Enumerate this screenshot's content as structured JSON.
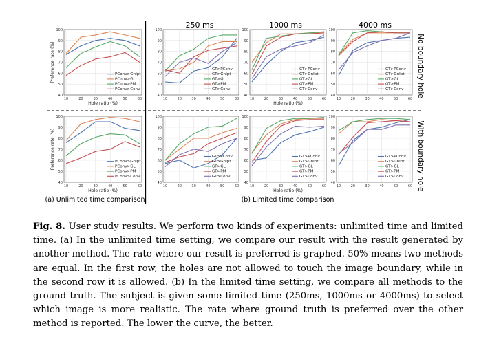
{
  "figure": {
    "column_titles": [
      "250 ms",
      "1000 ms",
      "4000 ms"
    ],
    "row_titles": [
      "No boundary hole",
      "With boundary hole"
    ],
    "subcaption_a": "(a) Unlimited time comparison",
    "subcaption_b": "(b) Limited time comparison",
    "colors": [
      "#4c72b0",
      "#dd8452",
      "#55a868",
      "#c44e52",
      "#8172b2"
    ]
  },
  "caption": {
    "label": "Fig. 8.",
    "text": "User study results. We perform two kinds of experiments: unlimited time and limited time. (a) In the unlimited time setting, we compare our result with the result generated by another method. The rate where our result is preferred is graphed. 50% means two methods are equal. In the first row, the holes are not allowed to touch the image boundary, while in the second row it is allowed. (b) In the limited time setting, we compare all methods to the ground truth. The subject is given some limited time (250ms, 1000ms or 4000ms) to select which image is more realistic. The rate where ground truth is preferred over the other method is reported. The lower the curve, the better."
  },
  "chart_data": [
    {
      "panel": "unlimited-no-boundary",
      "type": "line",
      "xlabel": "Hole ratio (%)",
      "ylabel": "Preference rate (%)",
      "x": [
        10,
        20,
        30,
        40,
        50,
        60
      ],
      "ylim": [
        40,
        100
      ],
      "xticks": [
        10,
        20,
        30,
        40,
        50,
        60
      ],
      "yticks": [
        40,
        50,
        60,
        70,
        80,
        90,
        100
      ],
      "grid": true,
      "legend_position": "lower-right",
      "series": [
        {
          "name": "PConv>GnIpt",
          "values": [
            77,
            85,
            90,
            92,
            90,
            85
          ]
        },
        {
          "name": "PConv>GL",
          "values": [
            78,
            93,
            95,
            98,
            95,
            92
          ]
        },
        {
          "name": "PConv>PM",
          "values": [
            65,
            78,
            84,
            89,
            85,
            75
          ]
        },
        {
          "name": "PConv>Conv",
          "values": [
            58,
            67,
            73,
            75,
            79,
            70
          ]
        }
      ]
    },
    {
      "panel": "250ms-no-boundary",
      "type": "line",
      "xlabel": "",
      "ylabel": "",
      "x": [
        10,
        20,
        30,
        40,
        50,
        60
      ],
      "ylim": [
        40,
        100
      ],
      "xticks": [
        10,
        20,
        30,
        40,
        50,
        60
      ],
      "yticks": [
        40,
        50,
        60,
        70,
        80,
        90,
        100
      ],
      "grid": true,
      "legend_position": "lower-right",
      "series": [
        {
          "name": "GT>PConv",
          "values": [
            52,
            51,
            62,
            65,
            75,
            92
          ]
        },
        {
          "name": "GT>GnIpt",
          "values": [
            62,
            64,
            70,
            85,
            89,
            89
          ]
        },
        {
          "name": "GT>GL",
          "values": [
            62,
            76,
            82,
            92,
            95,
            95
          ]
        },
        {
          "name": "GT>PM",
          "values": [
            63,
            60,
            75,
            81,
            83,
            85
          ]
        },
        {
          "name": "GT>Conv",
          "values": [
            57,
            70,
            74,
            69,
            80,
            88
          ]
        }
      ]
    },
    {
      "panel": "1000ms-no-boundary",
      "type": "line",
      "xlabel": "Hole ratio (%)",
      "ylabel": "",
      "x": [
        10,
        20,
        30,
        40,
        50,
        60
      ],
      "ylim": [
        40,
        100
      ],
      "xticks": [
        10,
        20,
        30,
        40,
        50,
        60
      ],
      "yticks": [
        40,
        50,
        60,
        70,
        80,
        90,
        100
      ],
      "grid": true,
      "legend_position": "lower-right",
      "series": [
        {
          "name": "GT>PConv",
          "values": [
            52,
            68,
            80,
            88,
            90,
            93
          ]
        },
        {
          "name": "GT>GnIpt",
          "values": [
            70,
            88,
            96,
            96,
            97,
            97
          ]
        },
        {
          "name": "GT>GL",
          "values": [
            63,
            92,
            94,
            96,
            97,
            98
          ]
        },
        {
          "name": "GT>PM",
          "values": [
            59,
            85,
            93,
            96,
            96,
            97
          ]
        },
        {
          "name": "GT>Conv",
          "values": [
            55,
            75,
            82,
            85,
            88,
            95
          ]
        }
      ]
    },
    {
      "panel": "4000ms-no-boundary",
      "type": "line",
      "xlabel": "",
      "ylabel": "",
      "x": [
        10,
        20,
        30,
        40,
        50,
        60
      ],
      "ylim": [
        40,
        100
      ],
      "xticks": [
        10,
        20,
        30,
        40,
        50,
        60
      ],
      "yticks": [
        40,
        50,
        60,
        70,
        80,
        90,
        100
      ],
      "grid": true,
      "legend_position": "lower-right",
      "series": [
        {
          "name": "GT>PConv",
          "values": [
            58,
            81,
            88,
            90,
            92,
            93
          ]
        },
        {
          "name": "GT>GnIpt",
          "values": [
            77,
            91,
            97,
            97,
            97,
            97
          ]
        },
        {
          "name": "GT>GL",
          "values": [
            77,
            97,
            99,
            98,
            97,
            97
          ]
        },
        {
          "name": "GT>PM",
          "values": [
            76,
            89,
            97,
            98,
            97,
            97
          ]
        },
        {
          "name": "GT>Conv",
          "values": [
            63,
            79,
            85,
            90,
            92,
            97
          ]
        }
      ]
    },
    {
      "panel": "unlimited-with-boundary",
      "type": "line",
      "xlabel": "Hole ratio (%)",
      "ylabel": "Preference rate (%)",
      "x": [
        10,
        20,
        30,
        40,
        50,
        60
      ],
      "ylim": [
        40,
        100
      ],
      "xticks": [
        10,
        20,
        30,
        40,
        50,
        60
      ],
      "yticks": [
        40,
        50,
        60,
        70,
        80,
        90,
        100
      ],
      "grid": true,
      "legend_position": "lower-right",
      "series": [
        {
          "name": "PConv>GnIpt",
          "values": [
            76,
            85,
            95,
            95,
            89,
            87
          ]
        },
        {
          "name": "PConv>GL",
          "values": [
            78,
            93,
            97,
            99,
            98,
            95
          ]
        },
        {
          "name": "PConv>PM",
          "values": [
            64,
            75,
            81,
            84,
            83,
            75
          ]
        },
        {
          "name": "PConv>Conv",
          "values": [
            57,
            62,
            68,
            70,
            77,
            72
          ]
        }
      ]
    },
    {
      "panel": "250ms-with-boundary",
      "type": "line",
      "xlabel": "",
      "ylabel": "",
      "x": [
        10,
        20,
        30,
        40,
        50,
        60
      ],
      "ylim": [
        40,
        100
      ],
      "xticks": [
        10,
        20,
        30,
        40,
        50,
        60
      ],
      "yticks": [
        40,
        50,
        60,
        70,
        80,
        90,
        100
      ],
      "grid": true,
      "legend_position": "lower-right",
      "series": [
        {
          "name": "GT>PConv",
          "values": [
            57,
            60,
            53,
            57,
            65,
            80
          ]
        },
        {
          "name": "GT>GnIpt",
          "values": [
            60,
            70,
            80,
            80,
            85,
            89
          ]
        },
        {
          "name": "GT>GL",
          "values": [
            60,
            75,
            84,
            90,
            91,
            98
          ]
        },
        {
          "name": "GT>PM",
          "values": [
            58,
            63,
            66,
            75,
            80,
            85
          ]
        },
        {
          "name": "GT>Conv",
          "values": [
            54,
            65,
            70,
            68,
            75,
            80
          ]
        }
      ]
    },
    {
      "panel": "1000ms-with-boundary",
      "type": "line",
      "xlabel": "Hole ratio (%)",
      "ylabel": "",
      "x": [
        10,
        20,
        30,
        40,
        50,
        60
      ],
      "ylim": [
        40,
        100
      ],
      "xticks": [
        10,
        20,
        30,
        40,
        50,
        60
      ],
      "yticks": [
        40,
        50,
        60,
        70,
        80,
        90,
        100
      ],
      "grid": true,
      "legend_position": "lower-right",
      "series": [
        {
          "name": "GT>PConv",
          "values": [
            60,
            62,
            76,
            83,
            86,
            90
          ]
        },
        {
          "name": "GT>GnIpt",
          "values": [
            67,
            83,
            93,
            97,
            98,
            98
          ]
        },
        {
          "name": "GT>GL",
          "values": [
            66,
            89,
            96,
            98,
            98,
            99
          ]
        },
        {
          "name": "GT>PM",
          "values": [
            58,
            77,
            91,
            96,
            97,
            97
          ]
        },
        {
          "name": "GT>Conv",
          "values": [
            55,
            72,
            84,
            91,
            90,
            91
          ]
        }
      ]
    },
    {
      "panel": "4000ms-with-boundary",
      "type": "line",
      "xlabel": "",
      "ylabel": "",
      "x": [
        10,
        20,
        30,
        40,
        50,
        60
      ],
      "ylim": [
        40,
        100
      ],
      "xticks": [
        10,
        20,
        30,
        40,
        50,
        60
      ],
      "yticks": [
        40,
        50,
        60,
        70,
        80,
        90,
        100
      ],
      "grid": true,
      "legend_position": "lower-right",
      "series": [
        {
          "name": "GT>PConv",
          "values": [
            55,
            78,
            88,
            90,
            94,
            97
          ]
        },
        {
          "name": "GT>GnIpt",
          "values": [
            84,
            95,
            95,
            97,
            96,
            95
          ]
        },
        {
          "name": "GT>GL",
          "values": [
            87,
            95,
            97,
            98,
            98,
            97
          ]
        },
        {
          "name": "GT>PM",
          "values": [
            65,
            81,
            94,
            95,
            96,
            95
          ]
        },
        {
          "name": "GT>Conv",
          "values": [
            66,
            76,
            88,
            88,
            92,
            92
          ]
        }
      ]
    }
  ]
}
